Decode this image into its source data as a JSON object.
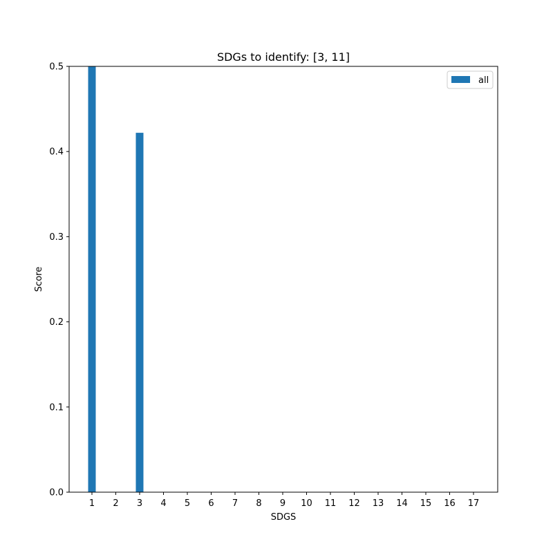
{
  "chart_data": {
    "type": "bar",
    "title": "SDGs to identify: [3, 11]",
    "xlabel": "SDGS",
    "ylabel": "Score",
    "categories": [
      "1",
      "2",
      "3",
      "4",
      "5",
      "6",
      "7",
      "8",
      "9",
      "10",
      "11",
      "12",
      "13",
      "14",
      "15",
      "16",
      "17"
    ],
    "series": [
      {
        "name": "all",
        "color": "#1f77b4",
        "values": [
          0.5,
          0,
          0.422,
          0,
          0,
          0,
          0,
          0,
          0,
          0,
          0,
          0,
          0,
          0,
          0,
          0,
          0
        ]
      }
    ],
    "ylim": [
      0,
      0.5
    ],
    "yticks": [
      "0.0",
      "0.1",
      "0.2",
      "0.3",
      "0.4",
      "0.5"
    ],
    "grid": false,
    "legend": "top-right"
  }
}
